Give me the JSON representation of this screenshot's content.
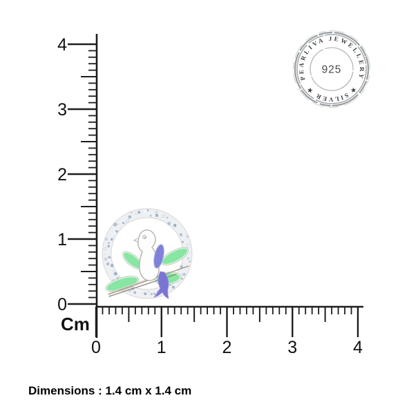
{
  "background_color": "#ffffff",
  "ruler": {
    "unit_label": "Cm",
    "vertical_labels": [
      "0",
      "1",
      "2",
      "3",
      "4"
    ],
    "horizontal_labels": [
      "0",
      "1",
      "2",
      "3",
      "4"
    ],
    "subdivisions_per_unit": 10,
    "ink_color": "#1c1c1c"
  },
  "pendant": {
    "description": "silver dove on branch pendant inside crystal-studded wreath ring",
    "colors": {
      "leaf_green": "#86e6a2",
      "leaf_edge": "#d8f3df",
      "wing_periwinkle": "#7e82d8",
      "tail_purple": "#7a75d5",
      "bird_white": "#fdfdfd",
      "outline_silver": "#b3aba3",
      "ring_base": "#eef1f4",
      "crystal_blue": "#a9b8cd"
    }
  },
  "stamp": {
    "top_arc_text": "PEARLIVA JEWELLERY",
    "bottom_arc_text": "SILVER",
    "star_left": "★",
    "star_right": "★",
    "center_text": "925",
    "ink_color": "#989da0",
    "text_color": "#3f3f3f"
  },
  "caption": {
    "text": "Dimensions : 1.4 cm x 1.4 cm"
  }
}
